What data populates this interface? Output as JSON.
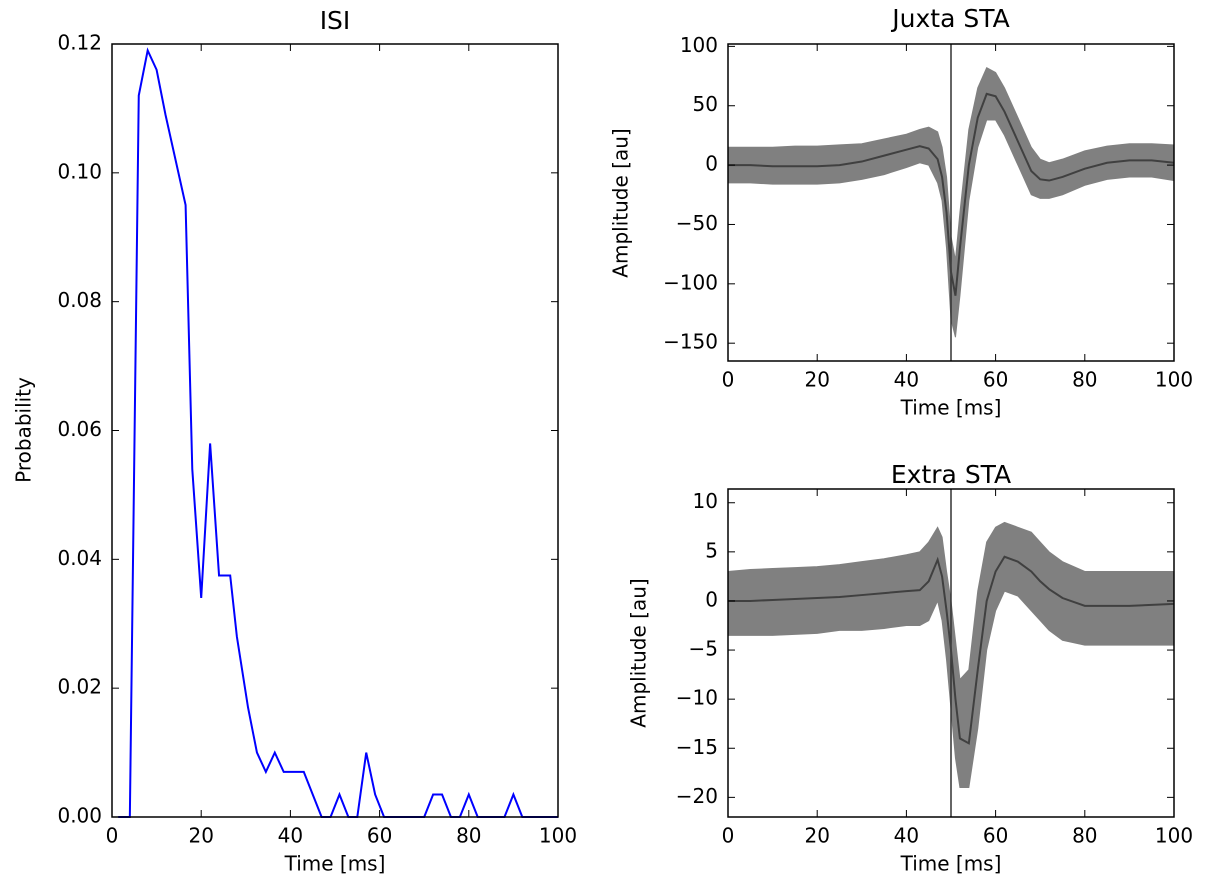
{
  "chart_data": [
    {
      "type": "line",
      "title": "ISI",
      "xlabel": "Time [ms]",
      "ylabel": "Probability",
      "x": [
        1.4,
        4,
        6,
        8,
        10,
        12,
        16.5,
        18,
        20,
        22,
        24,
        26.5,
        28,
        30.5,
        32.5,
        34.5,
        36.5,
        38.5,
        43,
        47,
        49,
        51,
        53,
        55,
        57,
        59,
        61,
        70,
        72,
        74,
        76,
        78,
        80,
        82,
        88,
        90,
        92,
        100
      ],
      "series": [
        {
          "color": "#0000ff",
          "values": [
            0,
            0,
            0.112,
            0.119,
            0.116,
            0.109,
            0.095,
            0.054,
            0.034,
            0.058,
            0.0375,
            0.0375,
            0.028,
            0.017,
            0.01,
            0.007,
            0.01,
            0.007,
            0.007,
            0,
            0,
            0.0035,
            0,
            0,
            0.01,
            0.0035,
            0,
            0,
            0.0035,
            0.0035,
            0,
            0,
            0.0035,
            0,
            0,
            0.0035,
            0,
            0
          ]
        }
      ],
      "xlim": [
        0,
        100
      ],
      "xticks": [
        0,
        20,
        40,
        60,
        80,
        100
      ],
      "ylim": [
        0,
        0.12
      ],
      "yticks": [
        {
          "value": 0,
          "label": "0.00"
        },
        0.02,
        0.04,
        0.06,
        0.08,
        {
          "value": 0.1,
          "label": "0.10"
        },
        0.12
      ],
      "grid": false
    },
    {
      "type": "line",
      "title": "Juxta STA",
      "xlabel": "Time [ms]",
      "ylabel": "Amplitude [au]",
      "x": [
        0,
        5,
        10,
        15,
        20,
        25,
        30,
        35,
        40,
        43,
        45,
        47,
        48,
        49,
        50,
        51,
        52,
        54,
        56,
        58,
        60,
        62,
        65,
        68,
        70,
        72,
        75,
        80,
        85,
        90,
        95,
        100
      ],
      "series": [
        {
          "color": "#404040",
          "values": [
            0,
            0,
            -1,
            -1,
            -1,
            0,
            3,
            8,
            13,
            16,
            14,
            5,
            -10,
            -40,
            -90,
            -110,
            -70,
            0,
            40,
            60,
            58,
            45,
            20,
            -5,
            -12,
            -13,
            -10,
            -3,
            2,
            4,
            4,
            2
          ]
        }
      ],
      "band": {
        "color": "#808080",
        "upper": [
          15,
          15,
          15,
          16,
          16,
          17,
          18,
          22,
          26,
          30,
          32,
          28,
          15,
          -10,
          -60,
          -80,
          -40,
          30,
          65,
          82,
          78,
          65,
          40,
          15,
          5,
          2,
          5,
          12,
          16,
          18,
          18,
          17
        ],
        "lower": [
          -15,
          -15,
          -16,
          -16,
          -16,
          -15,
          -12,
          -8,
          -2,
          2,
          0,
          -15,
          -30,
          -70,
          -130,
          -145,
          -110,
          -30,
          15,
          38,
          38,
          25,
          0,
          -25,
          -28,
          -28,
          -25,
          -17,
          -12,
          -10,
          -10,
          -13
        ]
      },
      "vline": 50,
      "vline_color": "#333333",
      "xlim": [
        0,
        100
      ],
      "xticks": [
        0,
        20,
        40,
        60,
        80,
        100
      ],
      "ylim": [
        -165,
        102
      ],
      "yticks": [
        100,
        50,
        0,
        {
          "value": -50,
          "label": "−50"
        },
        {
          "value": -100,
          "label": "−100"
        },
        {
          "value": -150,
          "label": "−150"
        }
      ],
      "grid": false
    },
    {
      "type": "line",
      "title": "Extra STA",
      "xlabel": "Time [ms]",
      "ylabel": "Amplitude [au]",
      "x": [
        0,
        5,
        10,
        15,
        20,
        25,
        30,
        35,
        40,
        43,
        45,
        47,
        48,
        49,
        50,
        51,
        52,
        54,
        56,
        58,
        60,
        62,
        65,
        68,
        70,
        72,
        75,
        80,
        85,
        90,
        95,
        100
      ],
      "series": [
        {
          "color": "#404040",
          "values": [
            0,
            0,
            0.1,
            0.2,
            0.3,
            0.4,
            0.6,
            0.8,
            1,
            1.1,
            2,
            4.2,
            2.5,
            -1,
            -5,
            -10,
            -14,
            -14.5,
            -7,
            0,
            3,
            4.5,
            4,
            3,
            2,
            1.2,
            0.3,
            -0.5,
            -0.5,
            -0.5,
            -0.4,
            -0.3
          ]
        }
      ],
      "band": {
        "color": "#808080",
        "upper": [
          3,
          3.2,
          3.3,
          3.4,
          3.5,
          3.7,
          4,
          4.3,
          4.7,
          5,
          6,
          7.5,
          6.5,
          3,
          0,
          -4,
          -8,
          -7,
          1,
          6,
          7.5,
          8,
          7.5,
          7,
          6,
          5,
          4,
          3,
          3,
          3,
          3,
          3
        ],
        "lower": [
          -3.5,
          -3.5,
          -3.5,
          -3.4,
          -3.3,
          -3,
          -3,
          -2.8,
          -2.5,
          -2.5,
          -2,
          0,
          -2,
          -6,
          -11,
          -16,
          -19,
          -19,
          -13,
          -5,
          -1,
          1,
          0.5,
          -1,
          -2,
          -3,
          -4,
          -4.5,
          -4.5,
          -4.5,
          -4.5,
          -4.5
        ]
      },
      "vline": 50,
      "vline_color": "#333333",
      "xlim": [
        0,
        100
      ],
      "xticks": [
        0,
        20,
        40,
        60,
        80,
        100
      ],
      "ylim": [
        -22,
        11.4
      ],
      "yticks": [
        10,
        5,
        0,
        {
          "value": -5,
          "label": "−5"
        },
        {
          "value": -10,
          "label": "−10"
        },
        {
          "value": -15,
          "label": "−15"
        },
        {
          "value": -20,
          "label": "−20"
        }
      ],
      "grid": false
    }
  ]
}
